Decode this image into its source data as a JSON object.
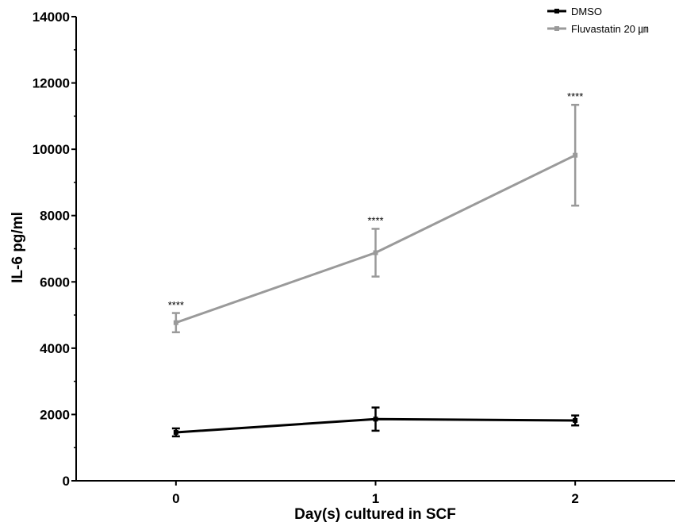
{
  "chart_data": {
    "type": "line",
    "xlabel": "Day(s) cultured in SCF",
    "ylabel": "IL-6 pg/ml",
    "categories": [
      "0",
      "1",
      "2"
    ],
    "x": [
      0,
      1,
      2
    ],
    "xlim": [
      -0.5,
      2.5
    ],
    "ylim": [
      0,
      14000
    ],
    "yticks": [
      0,
      2000,
      4000,
      6000,
      8000,
      10000,
      12000,
      14000
    ],
    "ytick_labels": [
      "0",
      "2000",
      "4000",
      "6000",
      "8000",
      "10000",
      "12000",
      "14000"
    ],
    "grid": false,
    "legend_position": "top-right",
    "series": [
      {
        "name": "DMSO",
        "color": "#000000",
        "values": [
          1460,
          1860,
          1820
        ],
        "errors": [
          120,
          350,
          150
        ]
      },
      {
        "name": "Fluvastatin 20 ㎛",
        "color": "#9a9a9a",
        "values": [
          4770,
          6880,
          9820
        ],
        "errors": [
          290,
          720,
          1520
        ]
      }
    ],
    "annotations": [
      {
        "x": 0,
        "y": 5050,
        "text": "****"
      },
      {
        "x": 1,
        "y": 7600,
        "text": "****"
      },
      {
        "x": 2,
        "y": 11340,
        "text": "****"
      }
    ]
  }
}
